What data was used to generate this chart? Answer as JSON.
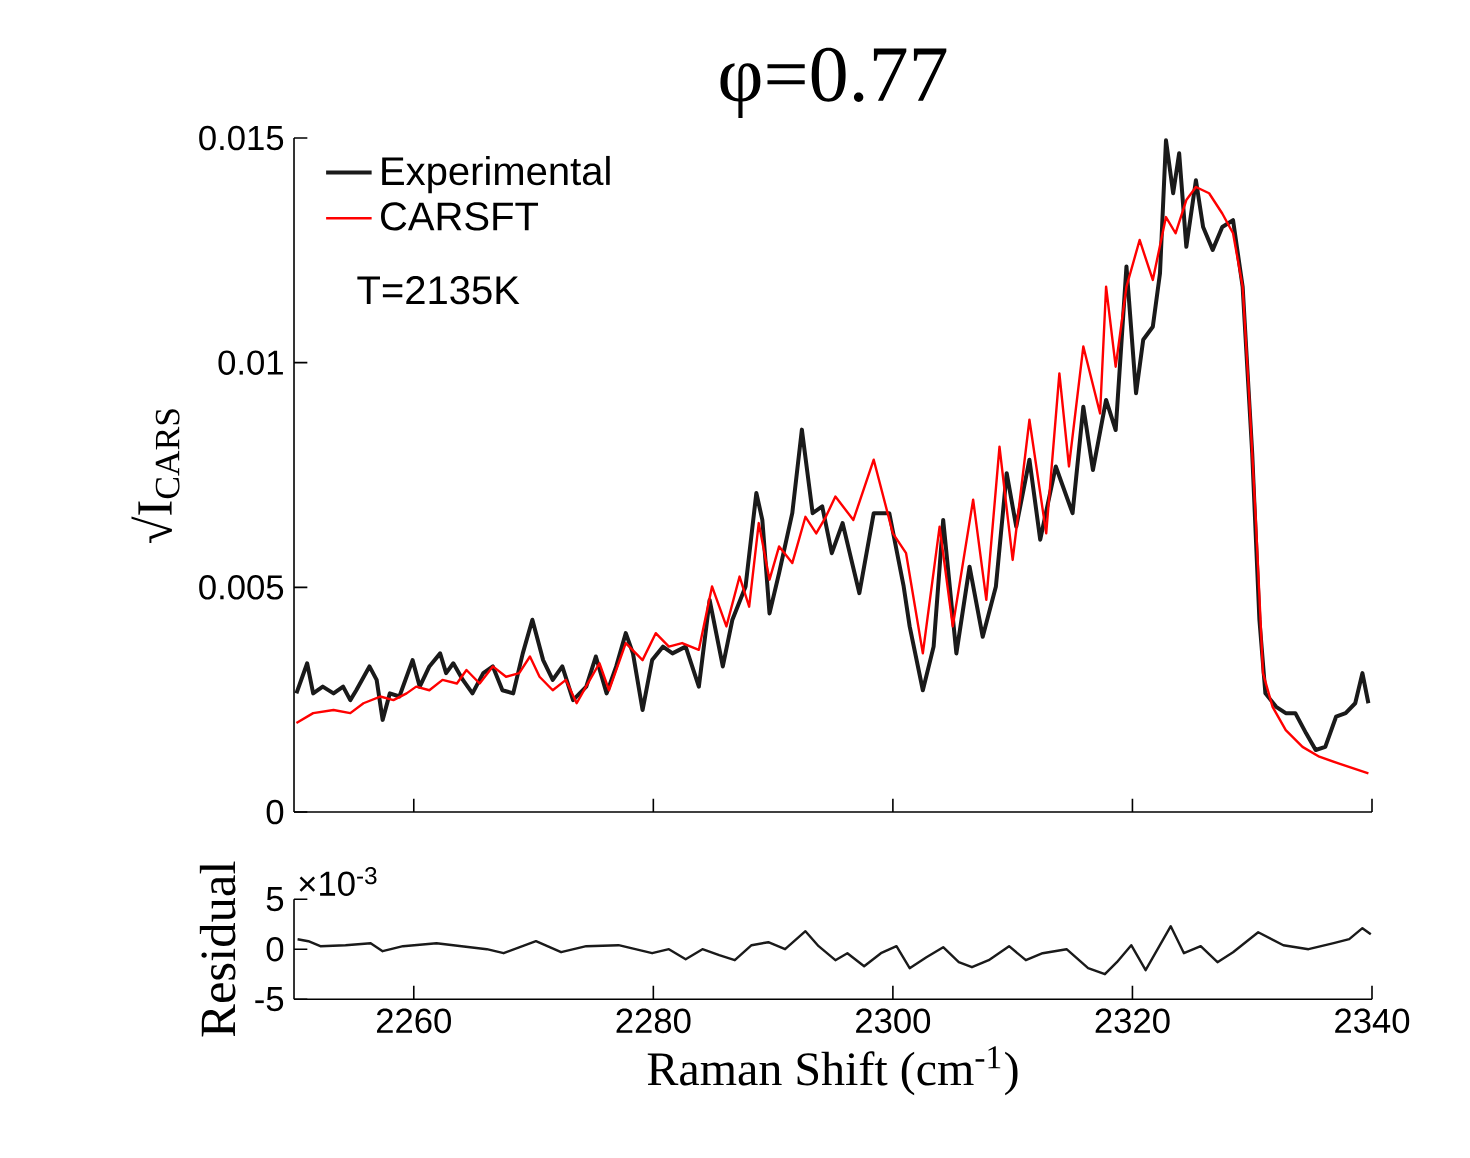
{
  "chart_data": [
    {
      "type": "line",
      "title": "φ=0.77",
      "ylabel": "√I$_{CARS}$",
      "xlim": [
        2250,
        2340
      ],
      "xticks": [
        2260,
        2280,
        2300,
        2320,
        2340
      ],
      "ylim": [
        0,
        0.015
      ],
      "yticks": [
        0,
        0.005,
        0.01,
        0.015
      ],
      "tick_labels": "y",
      "legend": "top left",
      "annotations": [
        "T=2135K"
      ],
      "series": [
        {
          "name": "Experimental",
          "color": "#1a1a1a",
          "x": [
            2250.2,
            2251.1,
            2251.6,
            2252.4,
            2253.3,
            2254.1,
            2254.7,
            2255.2,
            2256.3,
            2256.9,
            2257.4,
            2258.0,
            2258.8,
            2259.9,
            2260.5,
            2261.3,
            2262.2,
            2262.7,
            2263.3,
            2264.1,
            2264.9,
            2265.8,
            2266.6,
            2267.4,
            2268.3,
            2269.1,
            2269.9,
            2270.8,
            2271.6,
            2272.4,
            2273.3,
            2274.4,
            2275.2,
            2276.1,
            2276.9,
            2277.7,
            2278.3,
            2279.1,
            2279.9,
            2280.8,
            2281.6,
            2282.7,
            2283.8,
            2284.7,
            2285.8,
            2286.6,
            2287.7,
            2288.6,
            2289.1,
            2289.7,
            2290.5,
            2291.6,
            2292.4,
            2293.3,
            2294.1,
            2294.9,
            2295.8,
            2297.2,
            2298.4,
            2299.7,
            2300.9,
            2301.4,
            2302.5,
            2303.4,
            2304.2,
            2305.3,
            2306.4,
            2307.5,
            2308.6,
            2309.5,
            2310.3,
            2311.4,
            2312.3,
            2313.6,
            2315.0,
            2315.9,
            2316.7,
            2317.8,
            2318.6,
            2319.5,
            2320.3,
            2320.9,
            2321.7,
            2322.3,
            2322.8,
            2323.4,
            2323.9,
            2324.5,
            2325.3,
            2325.9,
            2326.7,
            2327.5,
            2328.4,
            2329.2,
            2330.0,
            2330.6,
            2331.1,
            2332.0,
            2332.8,
            2333.6,
            2334.5,
            2335.3,
            2336.1,
            2337.0,
            2337.8,
            2338.6,
            2339.2,
            2339.7
          ],
          "values": [
            0.00264,
            0.00331,
            0.00264,
            0.00279,
            0.00264,
            0.00279,
            0.00249,
            0.00271,
            0.00324,
            0.00294,
            0.00205,
            0.00264,
            0.00257,
            0.00338,
            0.00279,
            0.00324,
            0.00353,
            0.00309,
            0.00331,
            0.00294,
            0.00264,
            0.00309,
            0.00324,
            0.00271,
            0.00264,
            0.00353,
            0.00428,
            0.00338,
            0.00294,
            0.00324,
            0.00249,
            0.00279,
            0.00346,
            0.00264,
            0.00324,
            0.00398,
            0.00353,
            0.00227,
            0.00338,
            0.00368,
            0.00353,
            0.00368,
            0.00279,
            0.00472,
            0.00324,
            0.00428,
            0.00502,
            0.0071,
            0.0065,
            0.00442,
            0.00532,
            0.00665,
            0.00851,
            0.00665,
            0.0068,
            0.00576,
            0.00643,
            0.00487,
            0.00665,
            0.00665,
            0.00502,
            0.00413,
            0.00271,
            0.00368,
            0.0065,
            0.00353,
            0.00546,
            0.0039,
            0.00502,
            0.00754,
            0.00635,
            0.00784,
            0.00606,
            0.00769,
            0.00665,
            0.00902,
            0.00761,
            0.00917,
            0.0085,
            0.01214,
            0.00932,
            0.01051,
            0.0108,
            0.01199,
            0.01495,
            0.01377,
            0.01466,
            0.01258,
            0.01406,
            0.01302,
            0.01251,
            0.01302,
            0.01317,
            0.01169,
            0.00798,
            0.00428,
            0.00264,
            0.00234,
            0.0022,
            0.0022,
            0.00175,
            0.00138,
            0.00145,
            0.00212,
            0.0022,
            0.00242,
            0.00309,
            0.00242
          ]
        },
        {
          "name": "CARSFT",
          "color": "#ff0000",
          "x": [
            2250.2,
            2251.6,
            2253.3,
            2254.7,
            2255.8,
            2257.2,
            2258.3,
            2259.4,
            2260.2,
            2261.3,
            2262.4,
            2263.6,
            2264.4,
            2265.5,
            2266.6,
            2267.7,
            2268.8,
            2269.7,
            2270.5,
            2271.6,
            2272.7,
            2273.6,
            2274.7,
            2275.5,
            2276.3,
            2277.7,
            2279.1,
            2280.2,
            2281.3,
            2282.4,
            2283.8,
            2284.9,
            2286.1,
            2287.2,
            2288.0,
            2288.8,
            2289.7,
            2290.5,
            2291.6,
            2292.7,
            2293.6,
            2294.4,
            2295.2,
            2296.7,
            2298.4,
            2300.0,
            2301.1,
            2302.5,
            2303.9,
            2305.0,
            2306.7,
            2307.8,
            2308.9,
            2310.0,
            2311.4,
            2312.8,
            2313.9,
            2314.7,
            2315.9,
            2317.3,
            2317.8,
            2318.6,
            2319.5,
            2320.6,
            2321.7,
            2322.8,
            2323.6,
            2324.5,
            2325.3,
            2326.4,
            2327.5,
            2328.4,
            2329.2,
            2329.7,
            2330.3,
            2330.9,
            2331.7,
            2332.8,
            2334.2,
            2335.6,
            2337.2,
            2339.7
          ],
          "values": [
            0.00198,
            0.0022,
            0.00227,
            0.0022,
            0.00242,
            0.00257,
            0.00249,
            0.00264,
            0.00279,
            0.00271,
            0.00294,
            0.00286,
            0.00316,
            0.00286,
            0.00324,
            0.00301,
            0.00309,
            0.00346,
            0.00301,
            0.00271,
            0.00294,
            0.00242,
            0.00294,
            0.00331,
            0.00271,
            0.00376,
            0.00338,
            0.00398,
            0.00368,
            0.00376,
            0.00361,
            0.00502,
            0.00413,
            0.00524,
            0.00457,
            0.00643,
            0.00517,
            0.00591,
            0.00554,
            0.00657,
            0.0062,
            0.00657,
            0.00702,
            0.0065,
            0.00784,
            0.0062,
            0.00576,
            0.00353,
            0.00635,
            0.00413,
            0.00695,
            0.00472,
            0.00813,
            0.00561,
            0.00873,
            0.0062,
            0.00976,
            0.00769,
            0.01036,
            0.00887,
            0.01169,
            0.00991,
            0.01169,
            0.01273,
            0.01184,
            0.01324,
            0.01288,
            0.01362,
            0.01391,
            0.01377,
            0.01332,
            0.01288,
            0.01169,
            0.00947,
            0.0065,
            0.00309,
            0.00234,
            0.00182,
            0.00145,
            0.00123,
            0.00108,
            0.00086
          ]
        }
      ]
    },
    {
      "type": "line",
      "xlabel": "Raman Shift (cm$^{-1}$)",
      "ylabel": "Residual",
      "xlim": [
        2250,
        2340
      ],
      "xticks": [
        2260,
        2280,
        2300,
        2320,
        2340
      ],
      "ylim": [
        -5,
        5
      ],
      "yticks": [
        -5,
        0,
        5
      ],
      "annotations": [
        "×10$^{-3}$"
      ],
      "series": [
        {
          "color": "#1a1a1a",
          "x": [
            2250.3,
            2251.2,
            2252.2,
            2254.3,
            2256.4,
            2257.4,
            2259.1,
            2261.9,
            2264.0,
            2266.1,
            2267.5,
            2270.2,
            2272.3,
            2274.4,
            2277.1,
            2279.9,
            2281.3,
            2282.7,
            2284.1,
            2285.5,
            2286.8,
            2288.2,
            2289.6,
            2291.0,
            2292.7,
            2293.8,
            2295.2,
            2296.2,
            2297.6,
            2299.0,
            2300.3,
            2301.4,
            2302.8,
            2304.2,
            2305.5,
            2306.6,
            2308.0,
            2309.7,
            2311.1,
            2312.5,
            2314.5,
            2316.3,
            2317.7,
            2318.7,
            2319.9,
            2321.1,
            2323.2,
            2324.3,
            2325.7,
            2327.1,
            2328.4,
            2330.5,
            2332.6,
            2334.7,
            2336.8,
            2338.1,
            2339.2,
            2339.9
          ],
          "values": [
            1.0,
            0.8,
            0.3,
            0.4,
            0.6,
            -0.2,
            0.3,
            0.6,
            0.3,
            0,
            -0.4,
            0.8,
            -0.3,
            0.3,
            0.4,
            -0.4,
            0,
            -1.0,
            0,
            -0.6,
            -1.1,
            0.4,
            0.7,
            0,
            1.8,
            0.3,
            -1.1,
            -0.4,
            -1.7,
            -0.4,
            0.3,
            -1.9,
            -0.8,
            0.2,
            -1.3,
            -1.8,
            -1.1,
            0.3,
            -1.1,
            -0.4,
            0,
            -1.9,
            -2.5,
            -1.3,
            0.4,
            -2.1,
            2.3,
            -0.4,
            0.3,
            -1.3,
            -0.3,
            1.7,
            0.4,
            0,
            0.6,
            1.0,
            2.1,
            1.5
          ]
        }
      ]
    }
  ]
}
